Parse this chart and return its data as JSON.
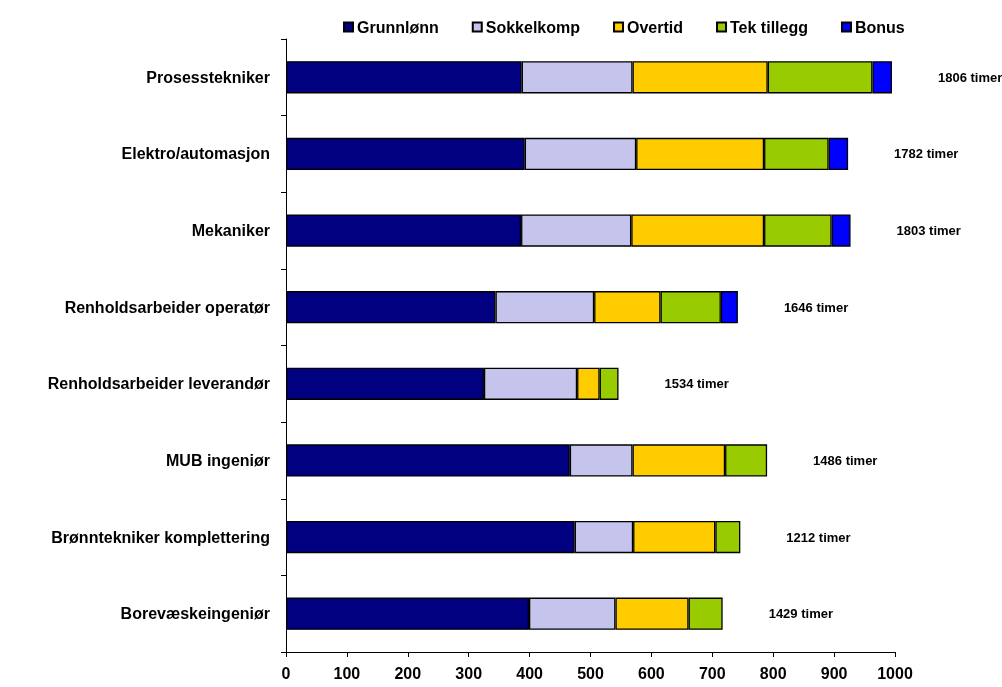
{
  "chart_data": {
    "type": "bar",
    "orientation": "horizontal",
    "stacked": true,
    "categories": [
      "Prosesstekniker",
      "Elektro/automasjon",
      "Mekaniker",
      "Renholdsarbeider operatør",
      "Renholdsarbeider leverandør",
      "MUB ingeniør",
      "Brønntekniker komplettering",
      "Borevæskeingeniør"
    ],
    "series": [
      {
        "name": "Grunnlønn",
        "color": "#000080",
        "values": [
          387,
          392,
          386,
          344,
          325,
          466,
          474,
          399
        ]
      },
      {
        "name": "Sokkelkomp",
        "color": "#c4c4ec",
        "values": [
          182,
          183,
          181,
          162,
          153,
          103,
          96,
          142
        ]
      },
      {
        "name": "Overtid",
        "color": "#ffcc00",
        "values": [
          222,
          210,
          218,
          109,
          37,
          152,
          135,
          120
        ]
      },
      {
        "name": "Tek tillegg",
        "color": "#99cc00",
        "values": [
          172,
          106,
          111,
          99,
          31,
          69,
          41,
          56
        ]
      },
      {
        "name": "Bonus",
        "color": "#0000ff",
        "values": [
          32,
          32,
          31,
          28,
          null,
          null,
          null,
          null
        ]
      }
    ],
    "xlim": [
      0,
      1000
    ],
    "xticks": [
      0,
      100,
      200,
      300,
      400,
      500,
      600,
      700,
      800,
      900,
      1000
    ],
    "legend": "top",
    "grid": false,
    "annotations": [
      "1806 timer",
      "1782 timer",
      "1803 timer",
      "1646 timer",
      "1534 timer",
      "1486 timer",
      "1212 timer",
      "1429 timer"
    ]
  }
}
